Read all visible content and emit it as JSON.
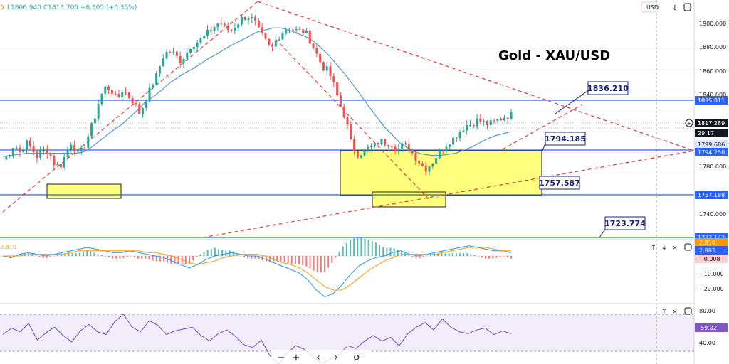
{
  "header": {
    "ohlc_text": "L1806.940  C1813.705  +6.305 (+0.35%)",
    "currency": "USD",
    "lead_char": "5"
  },
  "title": "Gold - XAU/USD",
  "annotations": [
    {
      "label": "1836.210",
      "price": 1836.21
    },
    {
      "label": "1794.185",
      "price": 1794.185
    },
    {
      "label": "1757.587",
      "price": 1757.587
    },
    {
      "label": "1723.774",
      "price": 1723.774
    }
  ],
  "price_axis": {
    "ticks": [
      "1900.000",
      "1880.000",
      "1860.000",
      "1840.000",
      "1780.000",
      "1740.000"
    ],
    "badges": [
      {
        "label": "1835.811",
        "color": "#2962ff"
      },
      {
        "label": "1817.289",
        "color": "#131722"
      },
      {
        "label": "29:17",
        "color": "#131722"
      },
      {
        "label": "1799.686",
        "color": "#dce6ff"
      },
      {
        "label": "1794.250",
        "color": "#2962ff"
      },
      {
        "label": "1757.188",
        "color": "#2962ff"
      },
      {
        "label": "1722.142",
        "color": "#2962ff"
      }
    ]
  },
  "macd": {
    "top_label": "2.810",
    "axis_ticks": [
      "−10.000",
      "−20.000"
    ],
    "badges": [
      {
        "label": "2.810",
        "color": "#ff9800"
      },
      {
        "label": "2.803",
        "color": "#2962ff"
      },
      {
        "label": "−0.008",
        "color": "#ffcdd2"
      }
    ]
  },
  "rsi": {
    "axis_ticks": [
      "80.00",
      "40.00"
    ],
    "badge": "59.02"
  },
  "controls": {
    "zoom_out": "−",
    "zoom_in": "+",
    "scroll_left": "‹",
    "scroll_right": "›",
    "reset": "↺"
  },
  "chart_data": {
    "type": "line",
    "title": "Gold - XAU/USD",
    "ylim": [
      1728,
      1916
    ],
    "levels": [
      1836.21,
      1794.185,
      1757.587,
      1723.774
    ],
    "price_series": [
      1773,
      1778,
      1788,
      1780,
      1790,
      1784,
      1776,
      1782,
      1781,
      1769,
      1766,
      1778,
      1790,
      1779,
      1782,
      1797,
      1812,
      1833,
      1843,
      1840,
      1830,
      1841,
      1834,
      1828,
      1817,
      1831,
      1843,
      1855,
      1872,
      1878,
      1875,
      1868,
      1874,
      1884,
      1886,
      1890,
      1896,
      1901,
      1906,
      1899,
      1898,
      1904,
      1910,
      1911,
      1907,
      1895,
      1887,
      1879,
      1890,
      1896,
      1901,
      1898,
      1897,
      1896,
      1886,
      1874,
      1862,
      1859,
      1844,
      1826,
      1813,
      1788,
      1778,
      1780,
      1784,
      1786,
      1791,
      1789,
      1789,
      1782,
      1787,
      1784,
      1777,
      1770,
      1764,
      1769,
      1777,
      1783,
      1790,
      1794,
      1800,
      1806,
      1807,
      1811,
      1809,
      1807,
      1809,
      1812,
      1815,
      1816
    ],
    "ma_series": [
      1776,
      1777,
      1778,
      1779,
      1779,
      1779,
      1779,
      1779,
      1779,
      1779,
      1780,
      1784,
      1790,
      1796,
      1802,
      1807,
      1814,
      1821,
      1829,
      1834,
      1840,
      1847,
      1852,
      1857,
      1861,
      1866,
      1871,
      1875,
      1880,
      1884,
      1888,
      1892,
      1896,
      1898,
      1900,
      1900,
      1898,
      1895,
      1892,
      1888,
      1881,
      1874,
      1865,
      1856,
      1846,
      1836,
      1825,
      1815,
      1805,
      1797,
      1789,
      1784,
      1780,
      1778,
      1777,
      1777,
      1778,
      1779,
      1782,
      1785,
      1789,
      1793,
      1796,
      1798,
      1800
    ],
    "macd_line": [
      0,
      -1,
      1,
      2,
      1,
      0,
      1,
      2,
      3,
      4,
      5,
      4,
      3,
      2,
      2,
      3,
      2,
      1,
      0,
      -1,
      -3,
      -5,
      -7,
      -5,
      -2,
      0,
      1,
      2,
      1,
      0,
      0,
      -2,
      -4,
      -6,
      -8,
      -10,
      -14,
      -20,
      -24,
      -22,
      -17,
      -11,
      -6,
      -3,
      -1,
      0,
      2,
      3,
      1,
      0,
      1,
      2,
      3,
      4,
      5,
      6,
      5,
      4,
      3,
      3,
      2
    ],
    "signal_line": [
      0,
      0,
      0,
      1,
      1,
      1,
      1,
      1,
      2,
      3,
      3,
      3,
      3,
      3,
      3,
      3,
      3,
      2,
      2,
      1,
      0,
      -2,
      -4,
      -5,
      -4,
      -3,
      -1,
      0,
      1,
      1,
      1,
      0,
      -2,
      -4,
      -5,
      -7,
      -10,
      -14,
      -18,
      -20,
      -20,
      -17,
      -13,
      -9,
      -6,
      -3,
      -1,
      1,
      1,
      1,
      1,
      1,
      2,
      3,
      4,
      5,
      5,
      5,
      4,
      3,
      3
    ],
    "rsi_series": [
      58,
      65,
      61,
      70,
      52,
      60,
      66,
      57,
      50,
      62,
      69,
      61,
      58,
      72,
      80,
      66,
      61,
      73,
      68,
      58,
      62,
      64,
      66,
      57,
      51,
      59,
      63,
      56,
      47,
      44,
      52,
      35,
      26,
      38,
      46,
      42,
      34,
      27,
      31,
      36,
      46,
      43,
      51,
      57,
      51,
      55,
      46,
      59,
      66,
      71,
      63,
      75,
      66,
      61,
      59,
      63,
      65,
      58,
      62,
      59
    ]
  }
}
